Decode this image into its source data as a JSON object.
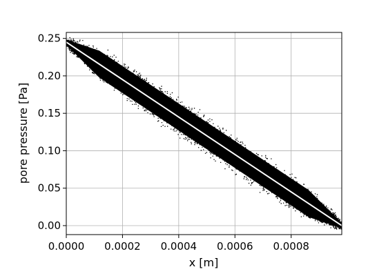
{
  "chart_data": {
    "type": "scatter",
    "title": "",
    "xlabel": "x [m]",
    "ylabel": "pore pressure [Pa]",
    "xlim": [
      0,
      0.00098
    ],
    "ylim": [
      -0.012,
      0.258
    ],
    "x_ticks": [
      0,
      0.0002,
      0.0004,
      0.0006,
      0.0008
    ],
    "x_tick_labels": [
      "0.0000",
      "0.0002",
      "0.0004",
      "0.0006",
      "0.0008"
    ],
    "y_ticks": [
      0,
      0.05,
      0.1,
      0.15,
      0.2,
      0.25
    ],
    "y_tick_labels": [
      "0.00",
      "0.05",
      "0.10",
      "0.15",
      "0.20",
      "0.25"
    ],
    "grid": true,
    "legend": "none",
    "series": [
      {
        "kind": "scatter",
        "color": "#000000",
        "description_points": "dense cloud of points around the linear trend from (0, 0.245) to (0.00098, 0.0)",
        "x_range": [
          0,
          0.00098
        ],
        "trend_start": [
          0,
          0.245
        ],
        "trend_end": [
          0.00098,
          0.0
        ],
        "spread_max": 0.03
      },
      {
        "kind": "line",
        "color": "#ffffff",
        "x": [
          0,
          0.00098
        ],
        "y": [
          0.245,
          0.0
        ]
      }
    ]
  }
}
